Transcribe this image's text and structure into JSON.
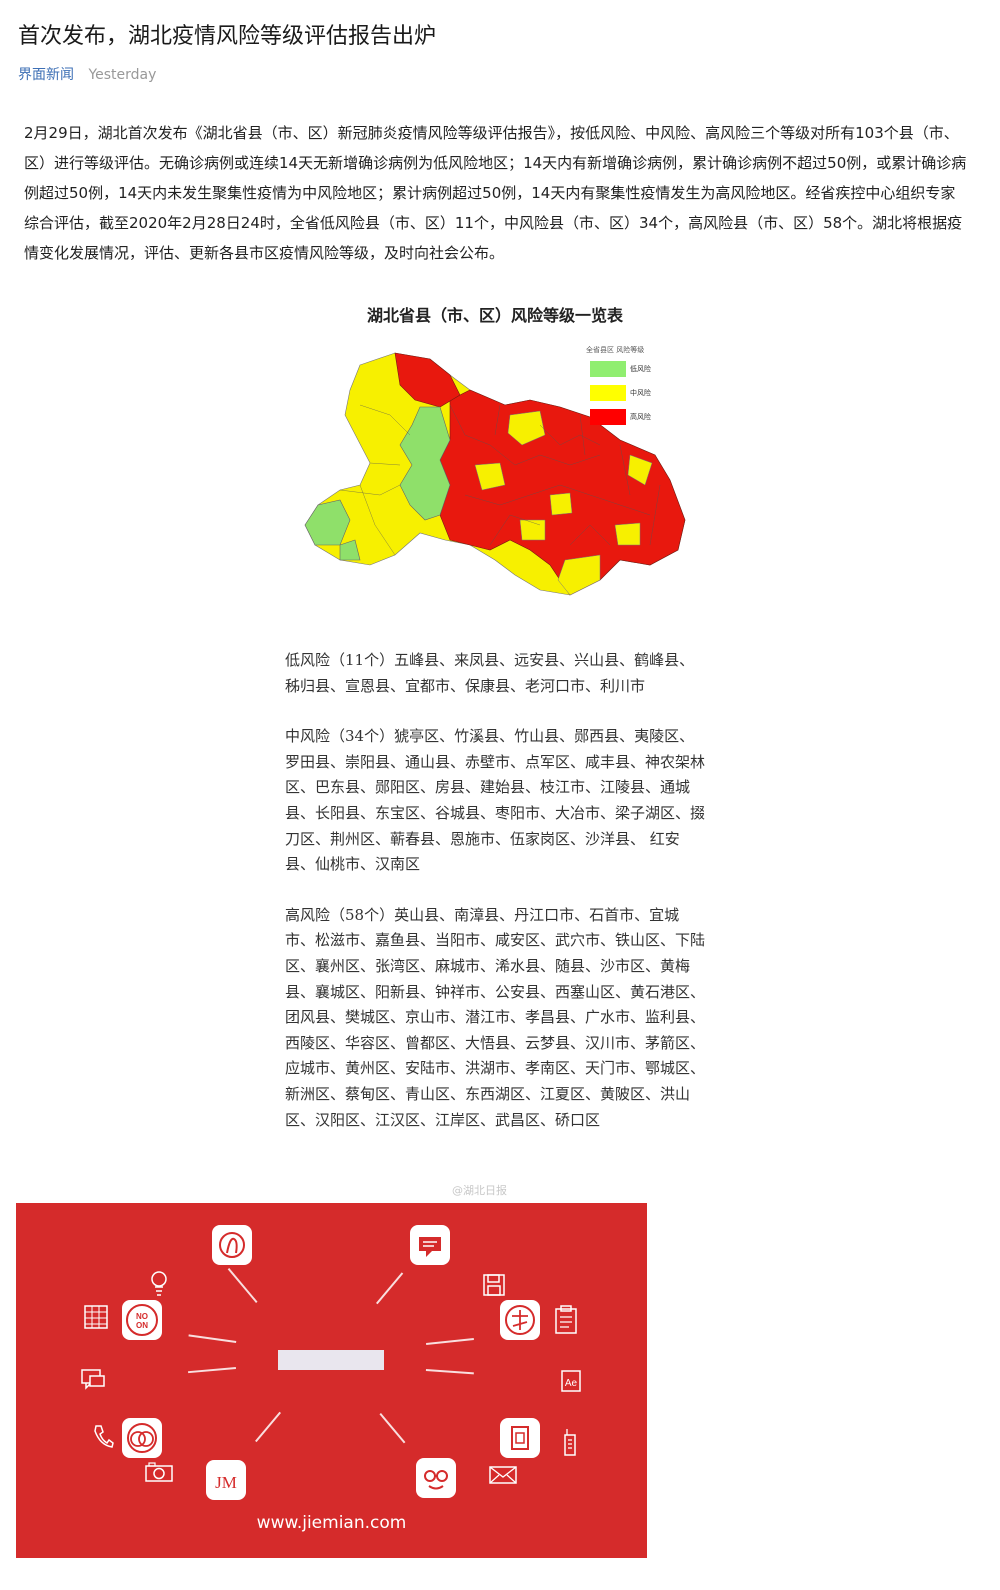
{
  "article": {
    "title": "首次发布，湖北疫情风险等级评估报告出炉",
    "source": "界面新闻",
    "time": "Yesterday",
    "paragraph": "2月29日，湖北首次发布《湖北省县（市、区）新冠肺炎疫情风险等级评估报告》，按低风险、中风险、高风险三个等级对所有103个县（市、区）进行等级评估。无确诊病例或连续14天无新增确诊病例为低风险地区；14天内有新增确诊病例，累计确诊病例不超过50例，或累计确诊病例超过50例，14天内未发生聚集性疫情为中风险地区；累计病例超过50例，14天内有聚集性疫情发生为高风险地区。经省疾控中心组织专家综合评估，截至2020年2月28日24时，全省低风险县（市、区）11个，中风险县（市、区）34个，高风险县（市、区）58个。湖北将根据疫情变化发展情况，评估、更新各县市区疫情风险等级，及时向社会公布。"
  },
  "figure": {
    "title": "湖北省县（市、区）风险等级一览表",
    "legend": {
      "title": "全省县区 风险等级",
      "items": [
        {
          "label": "低风险",
          "color": "#90ee70"
        },
        {
          "label": "中风险",
          "color": "#ffff00"
        },
        {
          "label": "高风险",
          "color": "#ff0000"
        }
      ]
    },
    "colors": {
      "low": "#8fe06a",
      "mid": "#f7f000",
      "high": "#e8180e"
    }
  },
  "lists": {
    "low": "低风险（11个）五峰县、来凤县、远安县、兴山县、鹤峰县、秭归县、宣恩县、宜都市、保康县、老河口市、利川市",
    "mid": "中风险（34个）猇亭区、竹溪县、竹山县、郧西县、夷陵区、罗田县、崇阳县、通山县、赤壁市、点军区、咸丰县、神农架林区、巴东县、郧阳区、房县、建始县、枝江市、江陵县、通城县、长阳县、东宝区、谷城县、枣阳市、大冶市、梁子湖区、掇刀区、荆州区、蕲春县、恩施市、伍家岗区、沙洋县、 红安县、仙桃市、汉南区",
    "high": "高风险（58个）英山县、南漳县、丹江口市、石首市、宜城市、松滋市、嘉鱼县、当阳市、咸安区、武穴市、铁山区、下陆区、襄州区、张湾区、麻城市、浠水县、随县、沙市区、黄梅县、襄城区、阳新县、钟祥市、公安县、西塞山区、黄石港区、团风县、樊城区、京山市、潜江市、孝昌县、广水市、监利县、西陵区、华容区、曾都区、大悟县、云梦县、汉川市、茅箭区、应城市、黄州区、安陆市、洪湖市、孝南区、天门市、鄂城区、新洲区、蔡甸区、青山区、东西湖区、江夏区、黄陂区、洪山区、汉阳区、江汉区、江岸区、武昌区、硚口区"
  },
  "watermark": "@湖北日报",
  "banner": {
    "url": "www.jiemian.com",
    "background": "#d52b2b",
    "icons": [
      "music-note-icon",
      "chat-bubble-icon",
      "lightbulb-icon",
      "floppy-disk-icon",
      "building-icon",
      "no-on-icon",
      "seal-icon",
      "clipboard-icon",
      "message-icon",
      "ae-file-icon",
      "phone-icon",
      "rings-icon",
      "document-icon",
      "walkie-talkie-icon",
      "camera-icon",
      "jm-logo-icon",
      "glasses-face-icon",
      "envelope-icon"
    ]
  }
}
